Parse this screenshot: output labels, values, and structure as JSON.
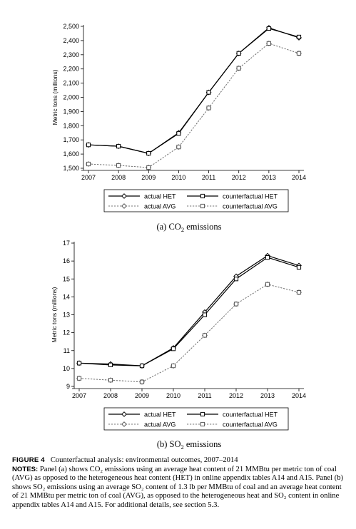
{
  "chart_data": [
    {
      "id": "co2",
      "type": "line",
      "ylabel": "Metric tons (millions)",
      "xlabel": "",
      "x": [
        2007,
        2008,
        2009,
        2010,
        2011,
        2012,
        2013,
        2014
      ],
      "x_tick_labels": [
        "2007",
        "2008",
        "2009",
        "2010",
        "2011",
        "2012",
        "2013",
        "2014"
      ],
      "ylim": [
        1500,
        2500
      ],
      "y_ticks": [
        1500,
        1600,
        1700,
        1800,
        1900,
        2000,
        2100,
        2200,
        2300,
        2400,
        2500
      ],
      "y_tick_labels": [
        "1,500",
        "1,600",
        "1,700",
        "1,800",
        "1,900",
        "2,000",
        "2,100",
        "2,200",
        "2,300",
        "2,400",
        "2,500"
      ],
      "grid": false,
      "legend_position": "bottom",
      "series": [
        {
          "name": "actual HET",
          "style": "solid",
          "marker": "diamond",
          "values": [
            1665,
            1655,
            1605,
            1750,
            2035,
            2310,
            2490,
            2420
          ]
        },
        {
          "name": "counterfactual HET",
          "style": "solid",
          "marker": "square",
          "values": [
            1665,
            1655,
            1605,
            1745,
            2035,
            2310,
            2485,
            2425
          ]
        },
        {
          "name": "actual AVG",
          "style": "dashed",
          "marker": "diamond",
          "values": [
            1530,
            1520,
            1505,
            1650,
            1925,
            2205,
            2380,
            2310
          ]
        },
        {
          "name": "counterfactual AVG",
          "style": "dashed",
          "marker": "square",
          "values": [
            1530,
            1520,
            1505,
            1650,
            1925,
            2205,
            2380,
            2310
          ]
        }
      ],
      "panel_label": "(a) CO",
      "panel_label_sub": "2",
      "panel_label_tail": " emissions"
    },
    {
      "id": "so2",
      "type": "line",
      "ylabel": "Metric tons (millions)",
      "xlabel": "",
      "x": [
        2007,
        2008,
        2009,
        2010,
        2011,
        2012,
        2013,
        2014
      ],
      "x_tick_labels": [
        "2007",
        "2008",
        "2009",
        "2010",
        "2011",
        "2012",
        "2013",
        "2014"
      ],
      "ylim": [
        9,
        17
      ],
      "y_ticks": [
        9,
        10,
        11,
        12,
        13,
        14,
        15,
        16,
        17
      ],
      "y_tick_labels": [
        "9",
        "10",
        "11",
        "12",
        "13",
        "14",
        "15",
        "16",
        "17"
      ],
      "grid": false,
      "legend_position": "bottom",
      "series": [
        {
          "name": "actual HET",
          "style": "solid",
          "marker": "diamond",
          "values": [
            10.3,
            10.25,
            10.15,
            11.15,
            13.15,
            15.15,
            16.3,
            15.75
          ]
        },
        {
          "name": "counterfactual HET",
          "style": "solid",
          "marker": "square",
          "values": [
            10.3,
            10.2,
            10.15,
            11.1,
            13.0,
            15.0,
            16.2,
            15.65
          ]
        },
        {
          "name": "actual AVG",
          "style": "dashed",
          "marker": "diamond",
          "values": [
            9.45,
            9.35,
            9.25,
            10.15,
            11.85,
            13.6,
            14.7,
            14.25
          ]
        },
        {
          "name": "counterfactual AVG",
          "style": "dashed",
          "marker": "square",
          "values": [
            9.45,
            9.35,
            9.25,
            10.15,
            11.85,
            13.6,
            14.7,
            14.25
          ]
        }
      ],
      "panel_label": "(b) SO",
      "panel_label_sub": "2",
      "panel_label_tail": " emissions"
    }
  ],
  "caption": {
    "figure_label": "FIGURE 4",
    "figure_title": "Counterfactual analysis: environmental outcomes, 2007–2014",
    "notes_label": "NOTES:",
    "notes_text": "Panel (a) shows CO₂ emissions using an average heat content of 21 MMBtu per metric ton of coal (AVG) as opposed to the heterogeneous heat content (HET) in online appendix tables A14 and A15. Panel (b) shows SO₂ emissions using an average SO₂ content of 1.3 lb per MMBtu of coal and an average heat content of 21 MMBtu per metric ton of coal (AVG), as opposed to the heterogeneous heat and SO₂ content in online appendix tables A14 and A15. For additional details, see section 5.3."
  }
}
